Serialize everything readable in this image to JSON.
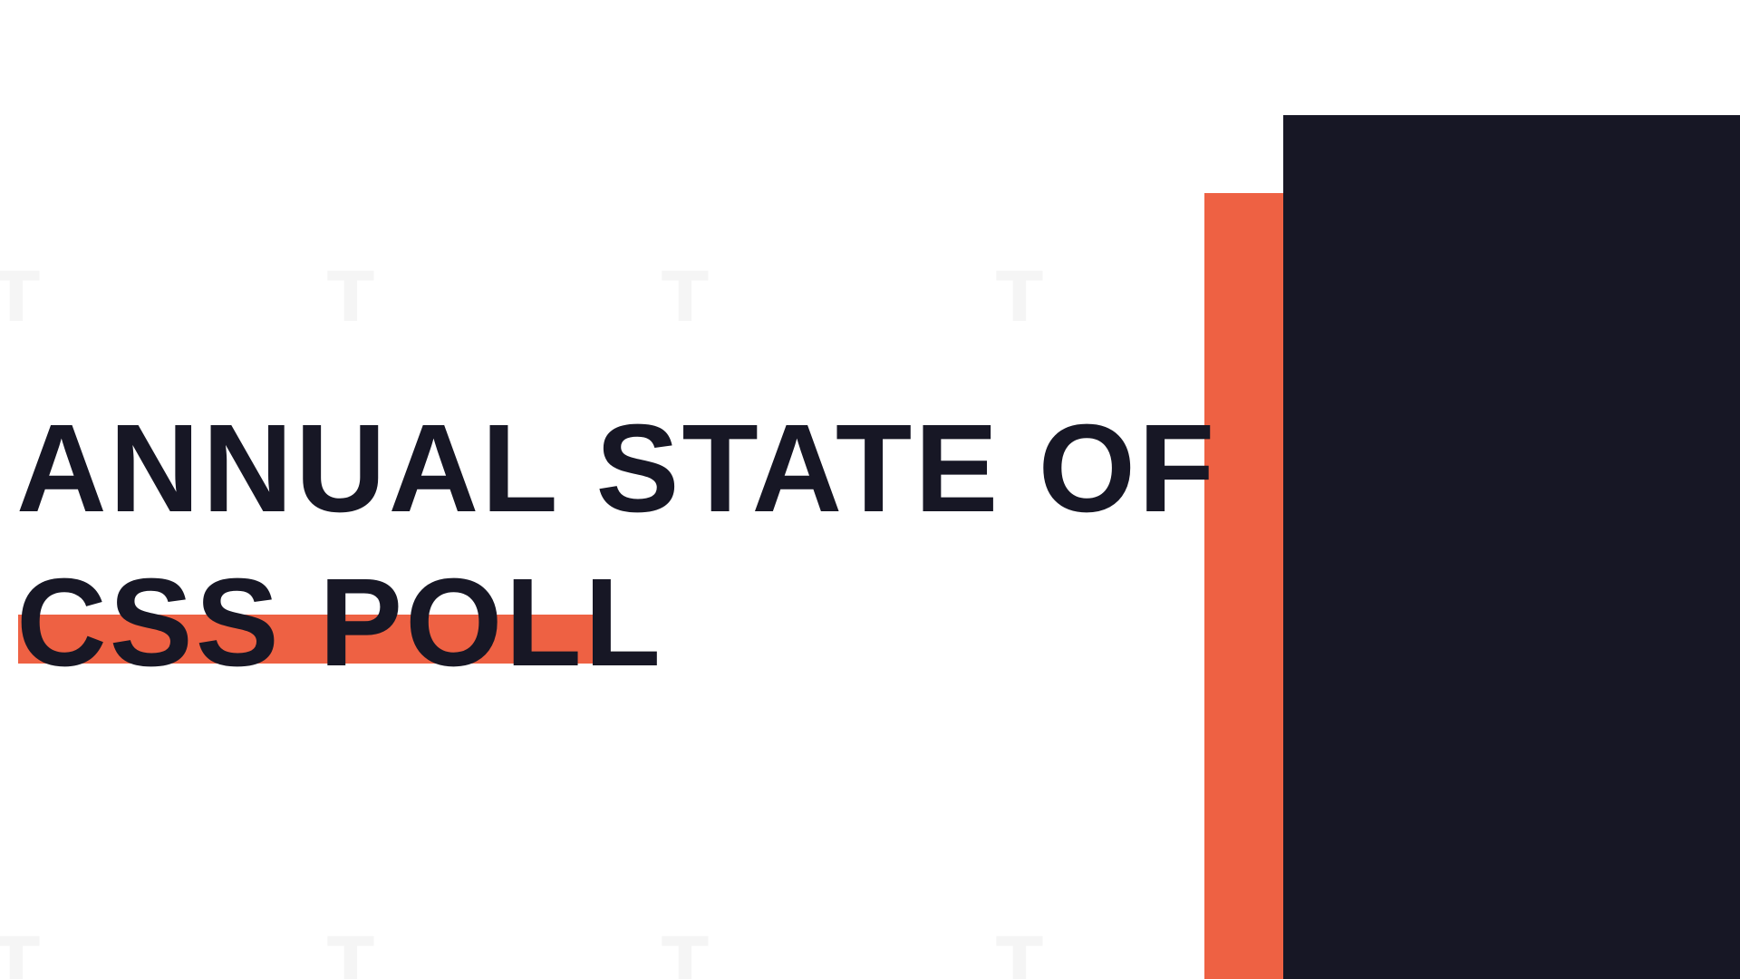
{
  "colors": {
    "background": "#ffffff",
    "accent": "#ee6143",
    "dark": "#171725",
    "watermark": "#f5f5f5"
  },
  "slide": {
    "title_line_1": "ANNUAL STATE OF",
    "title_line_2": "CSS POLL",
    "watermark_glyph": "T"
  }
}
